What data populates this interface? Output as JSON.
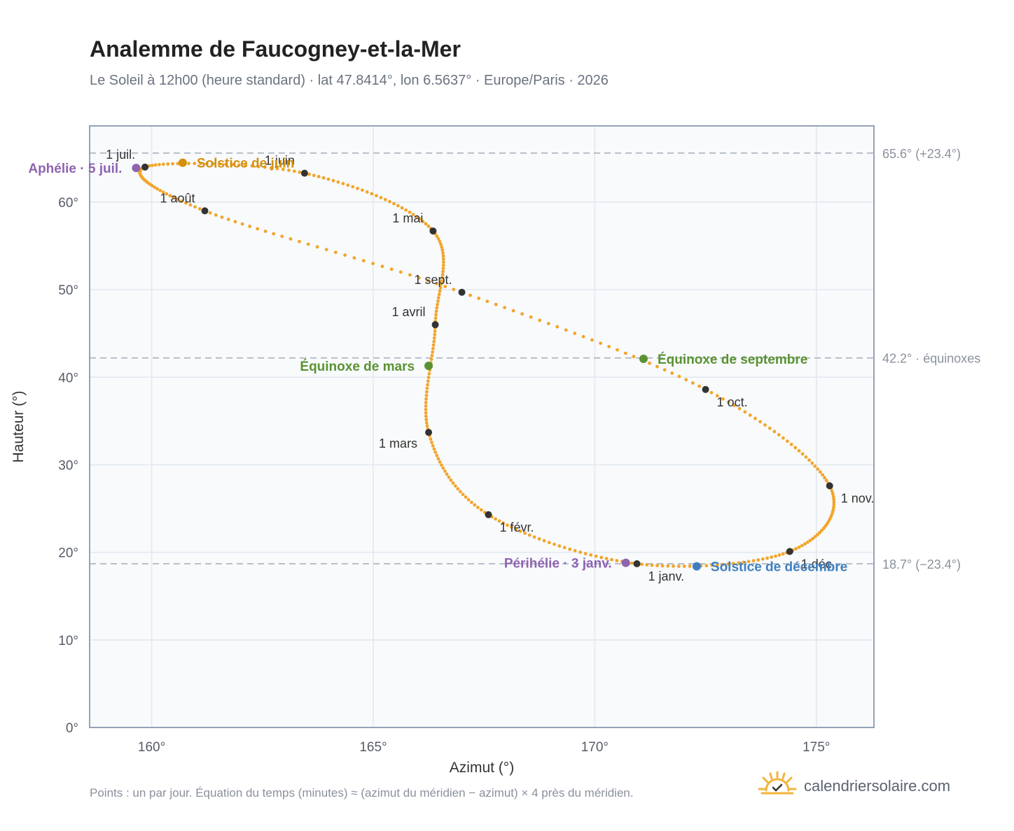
{
  "header": {
    "title": "Analemme de Faucogney-et-la-Mer",
    "subtitle": "Le Soleil à 12h00 (heure standard) · lat 47.8414°, lon 6.5637° · Europe/Paris · 2026"
  },
  "footer": {
    "note": "Points : un par jour. Équation du temps (minutes) ≈ (azimut du méridien − azimut) × 4 près du méridien.",
    "brand": "calendriersolaire.com",
    "brand_icon": "sun-check-icon"
  },
  "colors": {
    "curve": "#f2a52a",
    "month_marker": "#333333",
    "solstice_june": "#d4900c",
    "solstice_december": "#3f7fbf",
    "equinox": "#5a9232",
    "apsides": "#8e63b0",
    "reference_line": "#aab2bd",
    "plot_background": "#f8fafc",
    "grid": "#e2e8f0",
    "frame": "#94a3b8"
  },
  "chart_data": {
    "type": "scatter",
    "title": "Analemme de Faucogney-et-la-Mer",
    "xlabel": "Azimut (°)",
    "ylabel": "Hauteur (°)",
    "xlim": [
      158.6,
      176.3
    ],
    "ylim": [
      0,
      68.7
    ],
    "xticks": [
      160,
      165,
      170,
      175
    ],
    "yticks": [
      0,
      10,
      20,
      30,
      40,
      50,
      60
    ],
    "xtick_labels": [
      "160°",
      "165°",
      "170°",
      "175°"
    ],
    "ytick_labels": [
      "0°",
      "10°",
      "20°",
      "30°",
      "40°",
      "50°",
      "60°"
    ],
    "grid": true,
    "reference_lines": [
      {
        "y": 65.6,
        "label": "65.6° (+23.4°)"
      },
      {
        "y": 42.2,
        "label": "42.2° · équinoxes"
      },
      {
        "y": 18.7,
        "label": "18.7° (−23.4°)"
      }
    ],
    "series": [
      {
        "kind": "daily_curve",
        "anchors": [
          {
            "month": 1,
            "az": 170.95,
            "alt": 18.7
          },
          {
            "month": 2,
            "az": 167.6,
            "alt": 24.3
          },
          {
            "month": 3,
            "az": 166.25,
            "alt": 33.7
          },
          {
            "month": 4,
            "az": 166.4,
            "alt": 46.0
          },
          {
            "month": 5,
            "az": 166.35,
            "alt": 56.7
          },
          {
            "month": 6,
            "az": 163.45,
            "alt": 63.3
          },
          {
            "month": 7,
            "az": 159.85,
            "alt": 64.0
          },
          {
            "month": 8,
            "az": 161.2,
            "alt": 59.0
          },
          {
            "month": 9,
            "az": 167.0,
            "alt": 49.7
          },
          {
            "month": 10,
            "az": 172.5,
            "alt": 38.6
          },
          {
            "month": 11,
            "az": 175.3,
            "alt": 27.6
          },
          {
            "month": 12,
            "az": 174.4,
            "alt": 20.1
          }
        ]
      },
      {
        "kind": "month_markers",
        "points": [
          {
            "label": "1 janv.",
            "az": 170.95,
            "alt": 18.7,
            "pos": "below-right"
          },
          {
            "label": "1 févr.",
            "az": 167.6,
            "alt": 24.3,
            "pos": "below-right"
          },
          {
            "label": "1 mars",
            "az": 166.25,
            "alt": 33.7,
            "pos": "below-left"
          },
          {
            "label": "1 avril",
            "az": 166.4,
            "alt": 46.0,
            "pos": "above-left"
          },
          {
            "label": "1 mai",
            "az": 166.35,
            "alt": 56.7,
            "pos": "above-left"
          },
          {
            "label": "1 juin",
            "az": 163.45,
            "alt": 63.3,
            "pos": "above-left"
          },
          {
            "label": "1 juil.",
            "az": 159.85,
            "alt": 64.0,
            "pos": "above-left"
          },
          {
            "label": "1 août",
            "az": 161.2,
            "alt": 59.0,
            "pos": "above-left"
          },
          {
            "label": "1 sept.",
            "az": 167.0,
            "alt": 49.7,
            "pos": "above-left"
          },
          {
            "label": "1 oct.",
            "az": 172.5,
            "alt": 38.6,
            "pos": "below-right"
          },
          {
            "label": "1 nov.",
            "az": 175.3,
            "alt": 27.6,
            "pos": "below-right"
          },
          {
            "label": "1 déc.",
            "az": 174.4,
            "alt": 20.1,
            "pos": "below-right"
          }
        ]
      },
      {
        "kind": "events",
        "points": [
          {
            "label": "Solstice de juin",
            "az": 160.7,
            "alt": 64.5,
            "color_key": "solstice_june",
            "side": "right"
          },
          {
            "label": "Aphélie · 5 juil.",
            "az": 159.65,
            "alt": 63.9,
            "color_key": "apsides",
            "side": "left"
          },
          {
            "label": "Équinoxe de mars",
            "az": 166.25,
            "alt": 41.3,
            "color_key": "equinox",
            "side": "left"
          },
          {
            "label": "Équinoxe de septembre",
            "az": 171.1,
            "alt": 42.1,
            "color_key": "equinox",
            "side": "right"
          },
          {
            "label": "Périhélie · 3 janv.",
            "az": 170.7,
            "alt": 18.8,
            "color_key": "apsides",
            "side": "left"
          },
          {
            "label": "Solstice de décembre",
            "az": 172.3,
            "alt": 18.4,
            "color_key": "solstice_december",
            "side": "right"
          }
        ]
      }
    ]
  }
}
